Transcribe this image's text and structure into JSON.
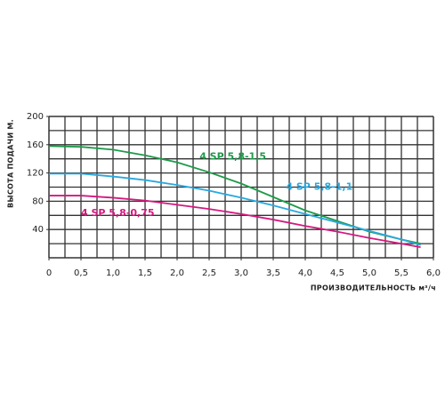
{
  "chart_data": {
    "type": "line",
    "xlabel": "ПРОИЗВОДИТЕЛЬНОСТЬ м³/ч",
    "ylabel": "ВЫСОТА ПОДАЧИ М.",
    "xlim": [
      0,
      6
    ],
    "ylim": [
      0,
      200
    ],
    "xticks": [
      0,
      {
        "value": 0.5,
        "label": "0,5"
      },
      {
        "value": 1,
        "label": "1,0"
      },
      {
        "value": 1.5,
        "label": "1,5"
      },
      {
        "value": 2,
        "label": "2,0"
      },
      {
        "value": 2.5,
        "label": "2,5"
      },
      {
        "value": 3,
        "label": "3,0"
      },
      {
        "value": 3.5,
        "label": "3,5"
      },
      {
        "value": 4,
        "label": "4,0"
      },
      {
        "value": 4.5,
        "label": "4,5"
      },
      {
        "value": 5,
        "label": "5,0"
      },
      {
        "value": 5.5,
        "label": "5,5"
      },
      {
        "value": 6,
        "label": "6,0"
      }
    ],
    "yticks": [
      40,
      80,
      120,
      160,
      200
    ],
    "xgrid": [
      0.25,
      0.5,
      0.75,
      1,
      1.25,
      1.5,
      1.75,
      2,
      2.25,
      2.5,
      2.75,
      3,
      3.25,
      3.5,
      3.75,
      4,
      4.25,
      4.5,
      4.75,
      5,
      5.25,
      5.5,
      5.75
    ],
    "ygrid": [
      20,
      40,
      60,
      80,
      100,
      120,
      140,
      160,
      180
    ],
    "grid": true,
    "series": [
      {
        "name": "4 SP 5,8-1,5",
        "color": "#1e9a4a",
        "x": [
          0,
          0.5,
          1,
          1.5,
          2,
          2.5,
          3,
          3.5,
          4,
          4.5,
          5,
          5.5,
          5.8
        ],
        "values": [
          158,
          157,
          153,
          145,
          135,
          121,
          105,
          86,
          67,
          52,
          37,
          26,
          20
        ]
      },
      {
        "name": "4 SP 5,8-1,1",
        "color": "#29a8e0",
        "x": [
          0,
          0.5,
          1,
          1.5,
          2,
          2.5,
          3,
          3.5,
          4,
          4.5,
          5,
          5.5,
          5.8
        ],
        "values": [
          119,
          119,
          115,
          110,
          103,
          95,
          85,
          74,
          62,
          50,
          38,
          26,
          18
        ]
      },
      {
        "name": "4 SP 5,8-0,75",
        "color": "#d4197f",
        "x": [
          0,
          0.5,
          1,
          1.5,
          2,
          2.5,
          3,
          3.5,
          4,
          4.5,
          5,
          5.5,
          5.8
        ],
        "values": [
          88,
          88,
          85,
          81,
          75,
          69,
          62,
          54,
          45,
          37,
          28,
          20,
          15
        ]
      }
    ]
  }
}
